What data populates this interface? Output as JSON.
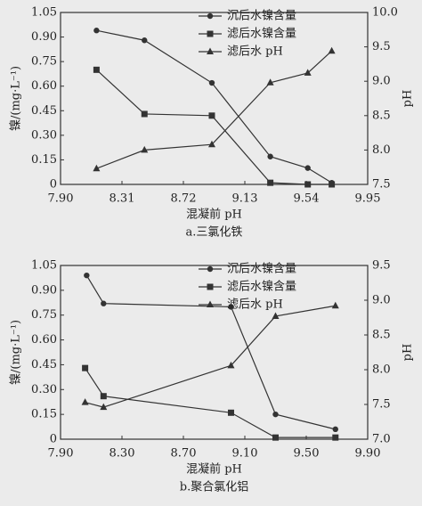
{
  "chart_data": [
    {
      "type": "line",
      "caption": "a.三氯化铁",
      "xlabel": "混凝前 pH",
      "ylabel": "镍/(mg·L⁻¹)",
      "y2label": "pH",
      "xlim": [
        7.9,
        9.95
      ],
      "xticks": [
        {
          "value": 7.9,
          "label": "7.90"
        },
        8.31,
        8.72,
        9.13,
        9.54,
        9.95
      ],
      "ylim": [
        0,
        1.05
      ],
      "yticks": [
        0,
        0.15,
        {
          "value": 0.3,
          "label": "0.30"
        },
        0.45,
        {
          "value": 0.6,
          "label": "0.60"
        },
        0.75,
        {
          "value": 0.9,
          "label": "0.90"
        },
        1.05
      ],
      "y2lim": [
        7.5,
        10
      ],
      "y2ticks": [
        7.5,
        {
          "value": 8,
          "label": "8.0"
        },
        8.5,
        {
          "value": 9,
          "label": "9.0"
        },
        9.5,
        {
          "value": 10,
          "label": "10.0"
        }
      ],
      "legend": "upper right",
      "series": [
        {
          "name": "沉后水镍含量",
          "color": "#333333",
          "marker": "circle",
          "x": [
            8.14,
            8.46,
            8.91,
            9.3,
            9.55,
            9.71
          ],
          "values": [
            0.94,
            0.88,
            0.62,
            0.17,
            0.1,
            0.01
          ]
        },
        {
          "name": "滤后水镍含量",
          "color": "#333333",
          "marker": "square",
          "x": [
            8.14,
            8.46,
            8.91,
            9.3,
            9.55,
            9.71
          ],
          "values": [
            0.7,
            0.43,
            0.42,
            0.01,
            0,
            0
          ]
        },
        {
          "name": "滤后水 pH",
          "color": "#333333",
          "marker": "triangle",
          "axis": "y2",
          "x": [
            8.14,
            8.46,
            8.91,
            9.3,
            9.55,
            9.71
          ],
          "values": [
            7.73,
            8.0,
            8.08,
            8.98,
            9.12,
            9.44
          ]
        }
      ]
    },
    {
      "type": "line",
      "caption": "b.聚合氯化铝",
      "xlabel": "混凝前 pH",
      "ylabel": "镍/(mg·L⁻¹)",
      "y2label": "pH",
      "xlim": [
        7.9,
        9.9
      ],
      "xticks": [
        {
          "value": 7.9,
          "label": "7.90"
        },
        {
          "value": 8.3,
          "label": "8.30"
        },
        {
          "value": 8.7,
          "label": "8.70"
        },
        {
          "value": 9.1,
          "label": "9.10"
        },
        {
          "value": 9.5,
          "label": "9.50"
        },
        {
          "value": 9.9,
          "label": "9.90"
        }
      ],
      "ylim": [
        0,
        1.05
      ],
      "yticks": [
        0,
        0.15,
        {
          "value": 0.3,
          "label": "0.30"
        },
        0.45,
        {
          "value": 0.6,
          "label": "0.60"
        },
        0.75,
        {
          "value": 0.9,
          "label": "0.90"
        },
        1.05
      ],
      "y2lim": [
        7,
        9.5
      ],
      "y2ticks": [
        {
          "value": 7,
          "label": "7.0"
        },
        7.5,
        {
          "value": 8,
          "label": "8.0"
        },
        8.5,
        {
          "value": 9,
          "label": "9.0"
        },
        9.5
      ],
      "legend": "upper right",
      "series": [
        {
          "name": "沉后水镍含量",
          "color": "#333333",
          "marker": "circle",
          "x": [
            8.07,
            8.18,
            9.01,
            9.3,
            9.69
          ],
          "values": [
            0.99,
            0.82,
            0.8,
            0.15,
            0.06
          ]
        },
        {
          "name": "滤后水镍含量",
          "color": "#333333",
          "marker": "square",
          "x": [
            8.06,
            8.18,
            9.01,
            9.3,
            9.69
          ],
          "values": [
            0.43,
            0.26,
            0.16,
            0.01,
            0.01
          ]
        },
        {
          "name": "滤后水 pH",
          "color": "#333333",
          "marker": "triangle",
          "axis": "y2",
          "x": [
            8.06,
            8.18,
            9.01,
            9.3,
            9.69
          ],
          "values": [
            7.53,
            7.46,
            8.06,
            8.77,
            8.92
          ]
        }
      ]
    }
  ]
}
